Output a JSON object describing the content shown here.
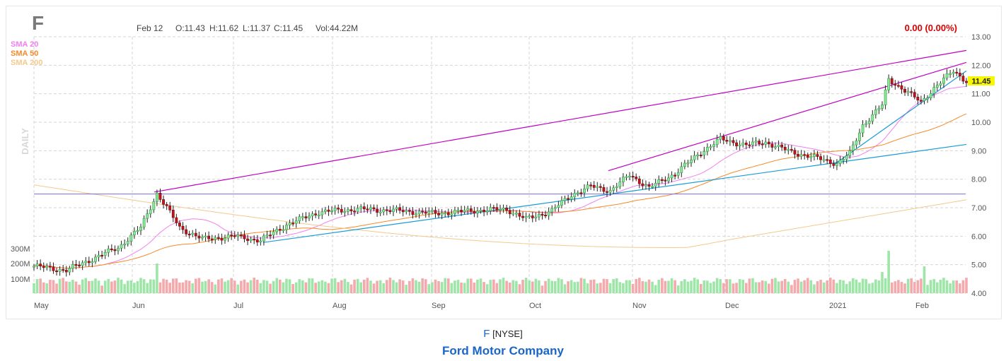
{
  "header": {
    "symbol": "F",
    "date": "Feb 12",
    "open": "O:11.43",
    "high": "H:11.62",
    "low": "L:11.37",
    "close": "C:11.45",
    "volume": "Vol:44.22M",
    "change": "0.00 (0.00%)",
    "last_price": "11.45"
  },
  "legend": [
    "SMA 20",
    "SMA 50",
    "SMA 200"
  ],
  "side_label": "DAILY",
  "caption": {
    "symbol": "F",
    "exchange": "[NYSE]",
    "company": "Ford Motor Company"
  },
  "colors": {
    "up": "#2ea043",
    "down": "#c2141c",
    "up_fill": "#8fe39b",
    "vol_up": "#9ee6a8",
    "vol_down": "#f4a9ad",
    "sma20": "#f27ff0",
    "sma50": "#f58a2a",
    "sma200": "#f5c98c",
    "trend_magenta": "#c000c0",
    "trend_blue": "#1a9bd7",
    "horizontal": "#7a6fd0",
    "change": "#d90000",
    "price_tag": "#f7f700"
  },
  "chart_data": {
    "type": "candlestick",
    "timeframe": "daily",
    "y_axis": {
      "range": [
        4.0,
        13.0
      ],
      "ticks": [
        "13.00",
        "12.00",
        "11.00",
        "10.00",
        "9.00",
        "8.00",
        "7.00",
        "6.00",
        "5.00",
        "4.00"
      ]
    },
    "volume_axis": {
      "ticks": [
        "300M",
        "200M",
        "100M"
      ]
    },
    "x_labels": [
      "May",
      "Jun",
      "Jul",
      "Aug",
      "Sep",
      "Oct",
      "Nov",
      "Dec",
      "2021",
      "Feb"
    ],
    "monthly_close_approx": {
      "months": [
        "May",
        "Jun",
        "Jul",
        "Aug",
        "Sep",
        "Oct",
        "Nov",
        "Dec",
        "Jan",
        "Feb 12"
      ],
      "close": [
        4.8,
        6.1,
        6.0,
        6.9,
        6.8,
        7.6,
        8.9,
        8.8,
        10.2,
        11.45
      ]
    },
    "horizontal_line": 7.48,
    "trendlines": [
      {
        "color": "magenta",
        "from": [
          "Jun 8",
          7.55
        ],
        "to": [
          "Feb 12",
          12.52
        ]
      },
      {
        "color": "magenta",
        "from": [
          "Oct 22",
          8.3
        ],
        "to": [
          "Feb 12",
          12.1
        ]
      },
      {
        "color": "blue",
        "from": [
          "Jul 10",
          5.78
        ],
        "to": [
          "Feb 12",
          9.22
        ]
      },
      {
        "color": "blue",
        "from": [
          "Jan 4",
          8.5
        ],
        "to": [
          "Feb 12",
          11.8
        ]
      }
    ],
    "moving_averages": [
      "SMA 20",
      "SMA 50",
      "SMA 200"
    ]
  }
}
